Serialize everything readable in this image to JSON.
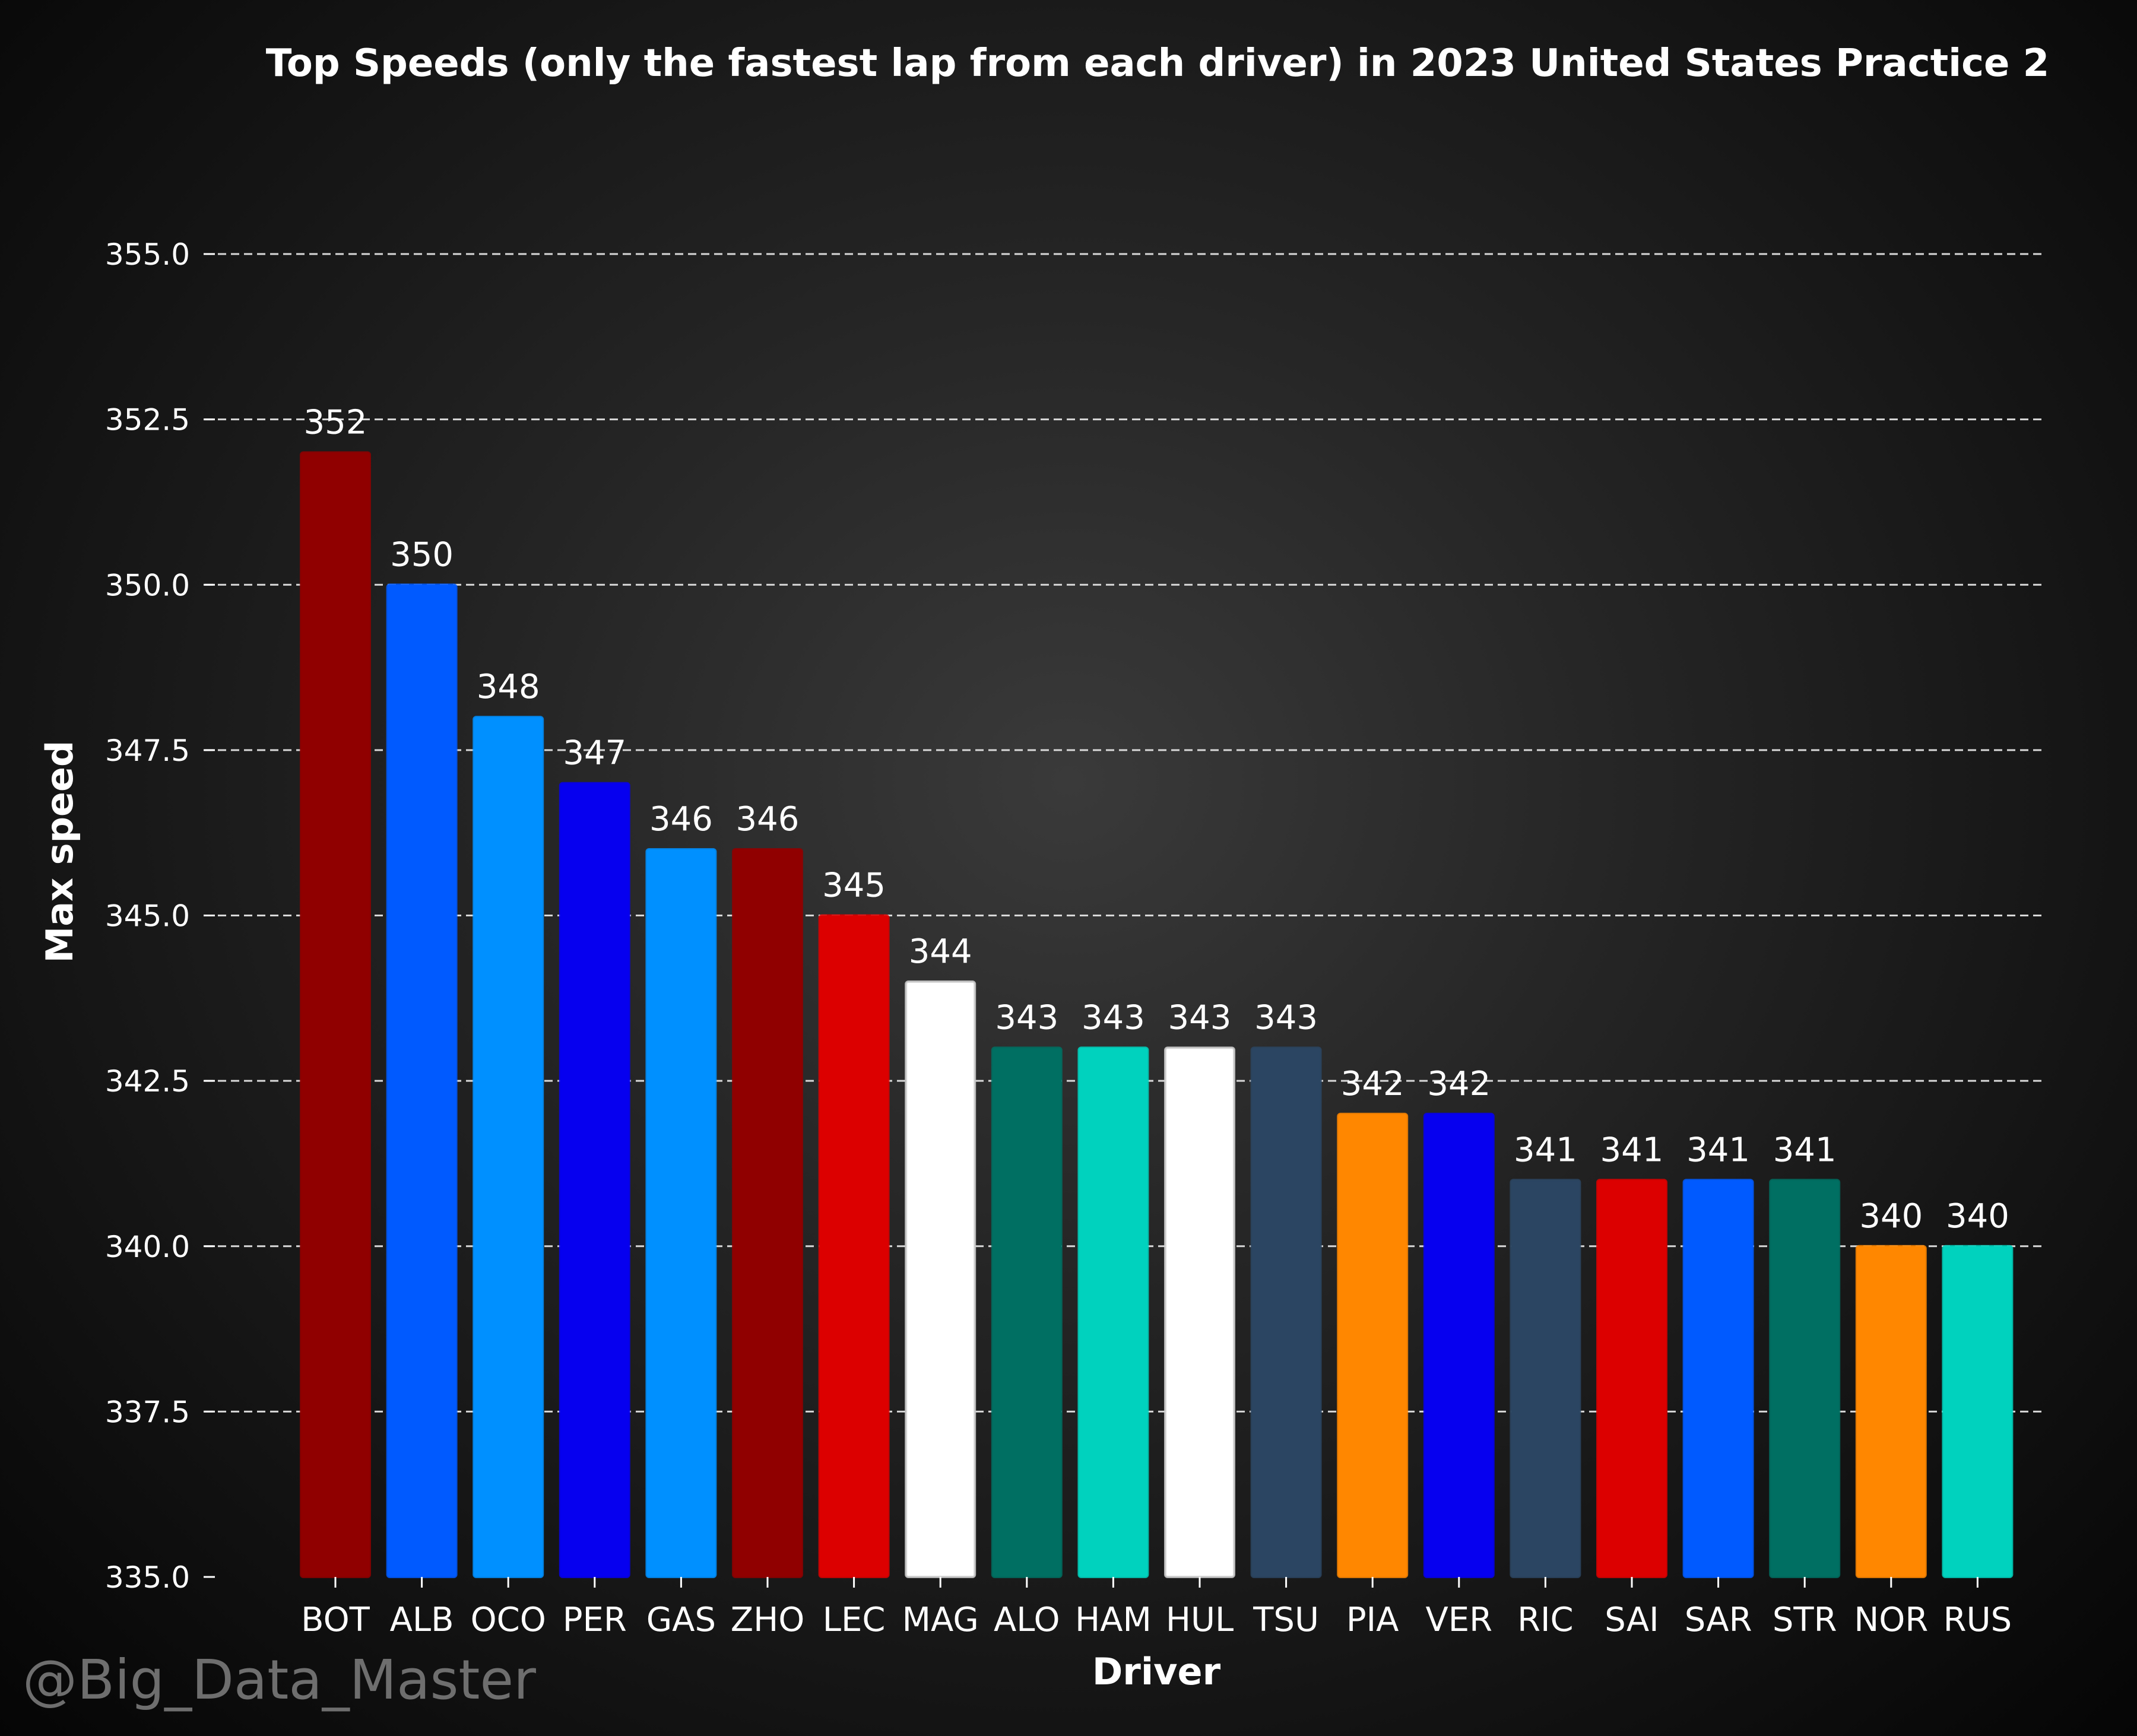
{
  "chart_data": {
    "type": "bar",
    "title": "Top Speeds (only the fastest lap from each driver) in 2023 United States Practice 2",
    "xlabel": "Driver",
    "ylabel": "Max speed",
    "ylim": [
      335.0,
      355.0
    ],
    "yticks": [
      "335.0",
      "337.5",
      "340.0",
      "342.5",
      "345.0",
      "347.5",
      "350.0",
      "352.5",
      "355.0"
    ],
    "grid": "horizontal dashed",
    "categories": [
      "BOT",
      "ALB",
      "OCO",
      "PER",
      "GAS",
      "ZHO",
      "LEC",
      "MAG",
      "ALO",
      "HAM",
      "HUL",
      "TSU",
      "PIA",
      "VER",
      "RIC",
      "SAI",
      "SAR",
      "STR",
      "NOR",
      "RUS"
    ],
    "values": [
      352,
      350,
      348,
      347,
      346,
      346,
      345,
      344,
      343,
      343,
      343,
      343,
      342,
      342,
      341,
      341,
      341,
      341,
      340,
      340
    ],
    "colors": [
      "#900000",
      "#005aff",
      "#0090ff",
      "#0600ef",
      "#0090ff",
      "#900000",
      "#dc0000",
      "#ffffff",
      "#006f62",
      "#00d2be",
      "#ffffff",
      "#2b4562",
      "#ff8700",
      "#0600ef",
      "#2b4562",
      "#dc0000",
      "#005aff",
      "#006f62",
      "#ff8700",
      "#00d2be"
    ]
  },
  "watermark": "@Big_Data_Master"
}
